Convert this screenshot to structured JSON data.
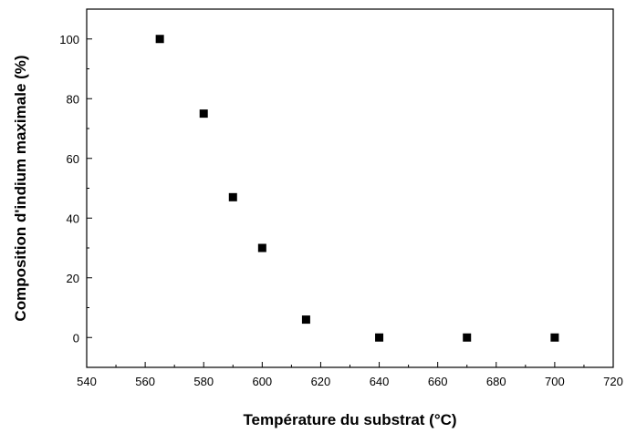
{
  "chart_data": {
    "type": "scatter",
    "title": "",
    "xlabel": "Température du substrat (°C)",
    "ylabel": "Composition d'indium maximale (%)",
    "xlim": [
      540,
      720
    ],
    "ylim": [
      -10,
      110
    ],
    "x_ticks": [
      540,
      560,
      580,
      600,
      620,
      640,
      660,
      680,
      700,
      720
    ],
    "y_ticks": [
      0,
      20,
      40,
      60,
      80,
      100
    ],
    "grid": false,
    "legend": "none",
    "marker": "square",
    "marker_color": "#000000",
    "series": [
      {
        "x": [
          565,
          580,
          590,
          600,
          615,
          640,
          670,
          700
        ],
        "y": [
          100,
          75,
          47,
          30,
          6,
          0,
          0,
          0
        ]
      }
    ]
  }
}
